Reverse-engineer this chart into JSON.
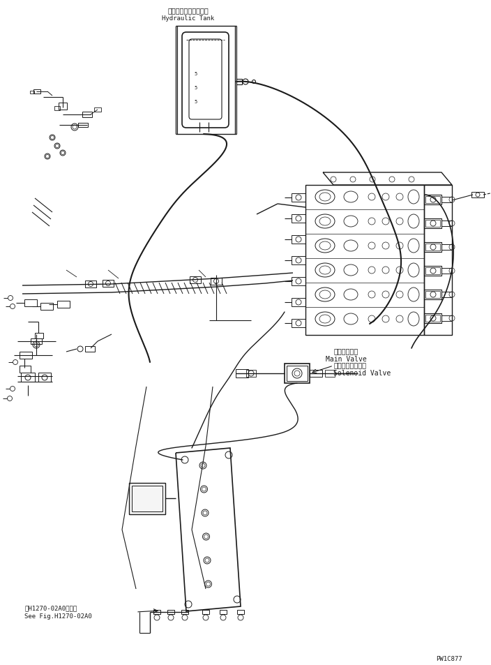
{
  "bg_color": "#ffffff",
  "line_color": "#1a1a1a",
  "title_jp": "ハイドロリックタンク",
  "title_en": "Hydraulic Tank",
  "main_valve_jp": "メインバルブ",
  "main_valve_en": "Main Valve",
  "solenoid_jp": "ソレノイドバルブ",
  "solenoid_en": "Solenoid Valve",
  "ref_jp": "第H1270-02A0図参照",
  "ref_en": "See Fig.H1270-02A0",
  "part_num": "PW1C877",
  "figsize": [
    7.04,
    9.54
  ],
  "dpi": 100
}
